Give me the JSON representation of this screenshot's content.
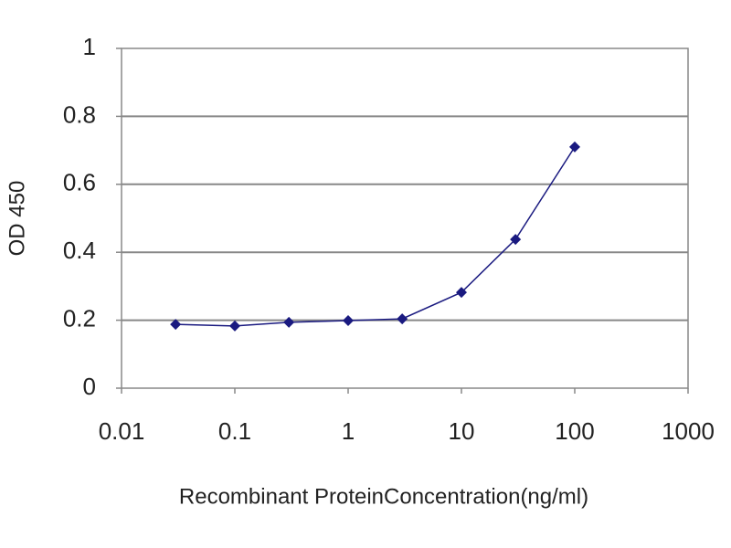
{
  "chart_data": {
    "type": "line",
    "x_label": "Recombinant ProteinConcentration(ng/ml)",
    "y_label": "OD 450",
    "x": [
      0.03,
      0.1,
      0.3,
      1,
      3,
      10,
      30,
      100
    ],
    "series": [
      {
        "color": "#1a1a80",
        "values": [
          0.188,
          0.183,
          0.194,
          0.199,
          0.204,
          0.282,
          0.438,
          0.71
        ]
      }
    ],
    "xscale": "log",
    "xlim": [
      0.01,
      1000
    ],
    "xticks": [
      0.01,
      0.1,
      1,
      10,
      100,
      1000
    ],
    "ylim": [
      0,
      1
    ],
    "yticks": [
      0,
      0.2,
      0.4,
      0.6,
      0.8,
      1
    ],
    "grid": true
  }
}
